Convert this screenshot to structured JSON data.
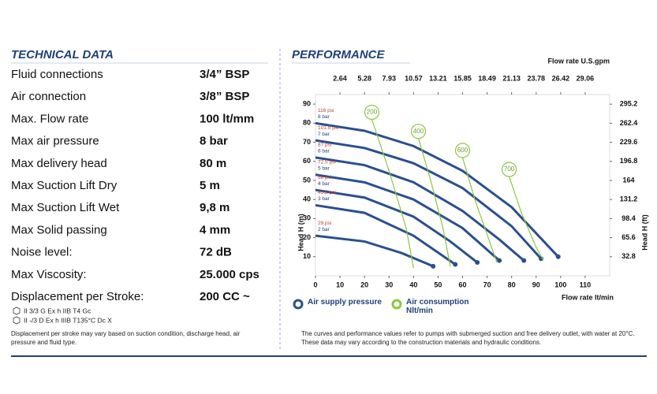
{
  "header": {
    "left_title": "TECHNICAL DATA",
    "right_title": "PERFORMANCE"
  },
  "technical_data": [
    [
      "Fluid connections",
      "3/4” BSP"
    ],
    [
      "Air connection",
      "3/8” BSP"
    ],
    [
      "Max. Flow rate",
      "100 lt/mm"
    ],
    [
      "Max air pressure",
      "8 bar"
    ],
    [
      "Max delivery head",
      "80 m"
    ],
    [
      "Max Suction Lift Dry",
      "5 m"
    ],
    [
      "Max Suction Lift Wet",
      "9,8 m"
    ],
    [
      "Max Solid passing",
      "4 mm"
    ],
    [
      "Noise level:",
      "72 dB"
    ],
    [
      "Max Viscosity:",
      "25.000 cps"
    ],
    [
      "Displacement per Stroke:",
      "200 CC ~"
    ]
  ],
  "certifications": [
    "II 3/3 G Ex h IIB T4 Gc",
    "II -/3 D Ex h IIIB T135°C Dc X"
  ],
  "left_note": "Displacement per stroke may vary based on suction condition, discharge head, air pressure and fluid type.",
  "right_note": "The curves and performance values refer to pumps with submerged suction and free delivery outlet, with water at 20°C. These data may vary according to the construction materials and hydraulic conditions.",
  "chart_data": {
    "type": "line",
    "xlabel": "Flow rate  lt/min",
    "x2label": "Flow rate U.S.gpm",
    "ylabel": "Head H (m)",
    "y2label": "Head H (ft)",
    "xlim": [
      0,
      120
    ],
    "xticks": [
      0,
      10,
      20,
      30,
      40,
      50,
      60,
      70,
      80,
      90,
      100,
      110
    ],
    "x2lim": [
      0,
      31.7
    ],
    "x2ticks": [
      2.64,
      5.28,
      7.93,
      10.57,
      13.21,
      15.85,
      18.49,
      21.13,
      23.78,
      26.42,
      29.06
    ],
    "ylim": [
      0,
      95
    ],
    "yticks": [
      10,
      20,
      30,
      40,
      50,
      60,
      70,
      80,
      90
    ],
    "y2lim": [
      0,
      311.7
    ],
    "y2ticks": [
      32.8,
      65.6,
      98.4,
      131.2,
      164,
      196.8,
      229.6,
      262.4,
      295.2
    ],
    "legend": [
      {
        "label": "Air supply pressure",
        "color": "#2a4f8f"
      },
      {
        "label": "Air consumption Nlt/min",
        "color": "#8dc63f"
      }
    ],
    "series": [
      {
        "name": "8 bar",
        "psi": "116 psi",
        "group": 0,
        "x": [
          0,
          20,
          40,
          60,
          80,
          99
        ],
        "values": [
          80,
          76,
          68,
          55,
          36,
          10
        ]
      },
      {
        "name": "7 bar",
        "psi": "101.5 psi",
        "group": 0,
        "x": [
          0,
          20,
          40,
          60,
          80,
          92
        ],
        "values": [
          71,
          67,
          59,
          46,
          26,
          9
        ]
      },
      {
        "name": "6 bar",
        "psi": "87 psi",
        "group": 0,
        "x": [
          0,
          20,
          40,
          60,
          75,
          85
        ],
        "values": [
          62,
          58,
          49,
          34,
          19,
          8
        ]
      },
      {
        "name": "5 bar",
        "psi": "72.5 psi",
        "group": 0,
        "x": [
          0,
          20,
          40,
          60,
          75
        ],
        "values": [
          53,
          49,
          40,
          25,
          8
        ]
      },
      {
        "name": "4 bar",
        "psi": "58 psi",
        "group": 0,
        "x": [
          0,
          20,
          40,
          55,
          66
        ],
        "values": [
          45,
          41,
          31,
          18,
          7
        ]
      },
      {
        "name": "3 bar",
        "psi": "43.5 psi",
        "group": 0,
        "x": [
          0,
          20,
          40,
          57
        ],
        "values": [
          37,
          33,
          21,
          6
        ]
      },
      {
        "name": "2 bar",
        "psi": "29 psi",
        "group": 0,
        "x": [
          0,
          20,
          35,
          48
        ],
        "values": [
          21,
          18,
          12,
          5
        ]
      },
      {
        "name": "200",
        "group": 1,
        "x": [
          23,
          30,
          37,
          40
        ],
        "values": [
          82,
          55,
          25,
          4
        ]
      },
      {
        "name": "400",
        "group": 1,
        "x": [
          42,
          47,
          52,
          55
        ],
        "values": [
          72,
          50,
          25,
          5
        ]
      },
      {
        "name": "600",
        "group": 1,
        "x": [
          60,
          65,
          71,
          74
        ],
        "values": [
          62,
          40,
          18,
          7
        ]
      },
      {
        "name": "700",
        "group": 1,
        "x": [
          79,
          84,
          90,
          93
        ],
        "values": [
          52,
          33,
          15,
          8
        ]
      }
    ]
  }
}
